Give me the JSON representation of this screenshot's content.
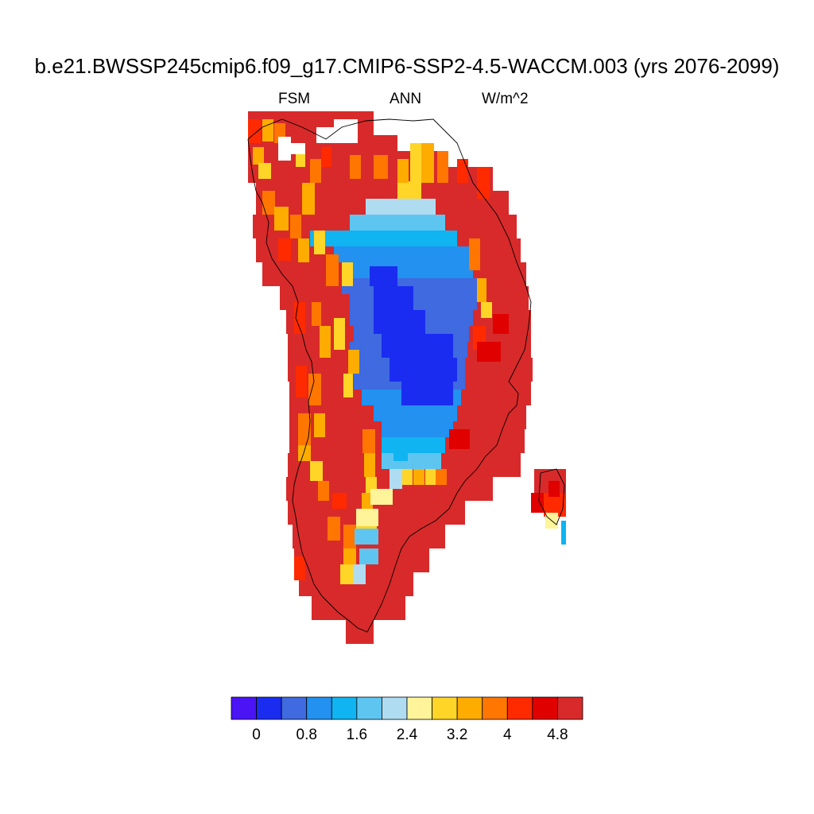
{
  "title": "b.e21.BWSSP245cmip6.f09_g17.CMIP6-SSP2-4.5-WACCM.003 (yrs 2076-2099)",
  "subtitle": {
    "left": "FSM",
    "center": "ANN",
    "right": "W/m^2"
  },
  "colorbar": {
    "colors": [
      "#4a14f5",
      "#1a2cf0",
      "#3f6ae0",
      "#2291f0",
      "#0fb4f0",
      "#5ec5f0",
      "#b0dcf2",
      "#fff49a",
      "#ffd528",
      "#ffac00",
      "#ff7600",
      "#ff2a00",
      "#e00000",
      "#d82a2a"
    ],
    "tick_labels": [
      "0",
      "0.8",
      "1.6",
      "2.4",
      "3.2",
      "4",
      "4.8"
    ]
  },
  "chart_data": {
    "type": "heatmap",
    "field": "FSM",
    "season": "ANN",
    "units": "W/m^2",
    "levels": [
      0,
      0.4,
      0.8,
      1.2,
      1.6,
      2.0,
      2.4,
      2.8,
      3.2,
      3.6,
      4.0,
      4.4,
      4.8
    ],
    "region": "Greenland ice sheet"
  }
}
